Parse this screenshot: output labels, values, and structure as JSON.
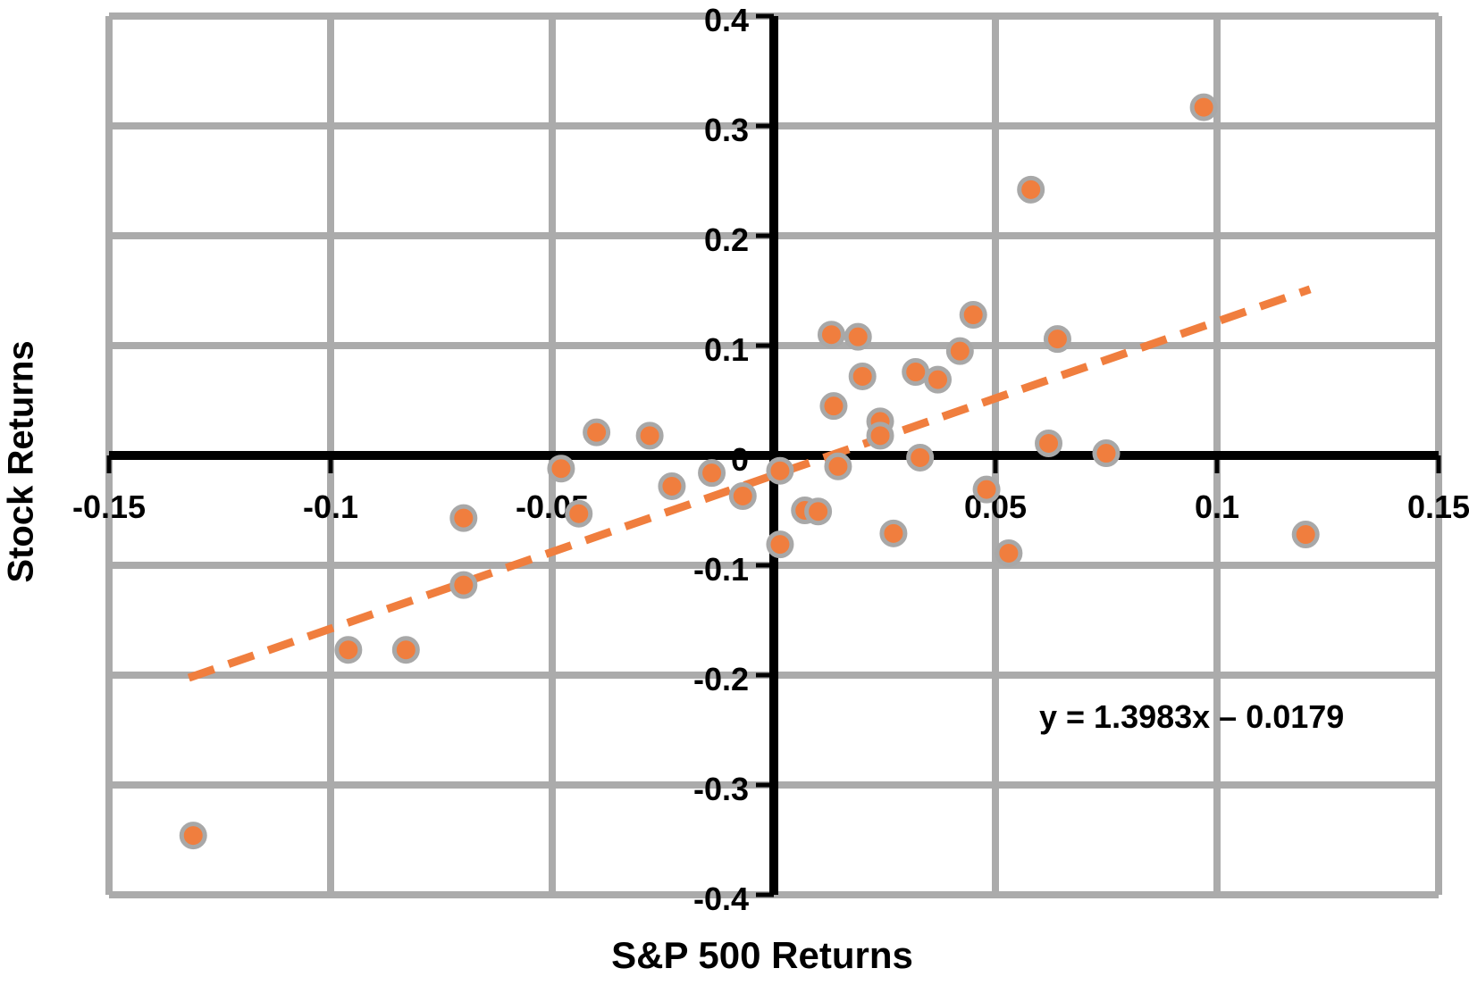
{
  "chart_data": {
    "type": "scatter",
    "title": "",
    "xlabel": "S&P 500 Returns",
    "ylabel": "Stock Returns",
    "xlim": [
      -0.15,
      0.15
    ],
    "ylim": [
      -0.4,
      0.4
    ],
    "grid": "on",
    "x_ticks": [
      {
        "v": -0.15,
        "label": "-0.15"
      },
      {
        "v": -0.1,
        "label": "-0.1"
      },
      {
        "v": -0.05,
        "label": "-0.05"
      },
      {
        "v": 0.05,
        "label": "0.05"
      },
      {
        "v": 0.1,
        "label": "0.1"
      },
      {
        "v": 0.15,
        "label": "0.15"
      }
    ],
    "y_ticks": [
      {
        "v": 0.4,
        "label": "0.4"
      },
      {
        "v": 0.3,
        "label": "0.3"
      },
      {
        "v": 0.2,
        "label": "0.2"
      },
      {
        "v": 0.1,
        "label": "0.1"
      },
      {
        "v": 0.0,
        "label": "0"
      },
      {
        "v": -0.1,
        "label": "-0.1"
      },
      {
        "v": -0.2,
        "label": "-0.2"
      },
      {
        "v": -0.3,
        "label": "-0.3"
      },
      {
        "v": -0.4,
        "label": "-0.4"
      }
    ],
    "points": [
      [
        0.097,
        0.317
      ],
      [
        0.058,
        0.242
      ],
      [
        0.013,
        0.11
      ],
      [
        0.019,
        0.108
      ],
      [
        0.045,
        0.128
      ],
      [
        0.042,
        0.095
      ],
      [
        0.064,
        0.106
      ],
      [
        0.02,
        0.072
      ],
      [
        0.032,
        0.076
      ],
      [
        0.037,
        0.069
      ],
      [
        0.0135,
        0.045
      ],
      [
        0.024,
        0.031
      ],
      [
        0.024,
        0.018
      ],
      [
        0.062,
        0.011
      ],
      [
        -0.04,
        0.021
      ],
      [
        -0.048,
        -0.012
      ],
      [
        -0.028,
        0.018
      ],
      [
        0.033,
        -0.002
      ],
      [
        0.0014,
        -0.014
      ],
      [
        -0.007,
        -0.037
      ],
      [
        0.0145,
        -0.01
      ],
      [
        0.007,
        -0.05
      ],
      [
        0.01,
        -0.051
      ],
      [
        0.048,
        -0.031
      ],
      [
        0.027,
        -0.071
      ],
      [
        0.0014,
        -0.081
      ],
      [
        -0.014,
        -0.016
      ],
      [
        -0.023,
        -0.028
      ],
      [
        -0.044,
        -0.053
      ],
      [
        -0.07,
        -0.057
      ],
      [
        -0.07,
        -0.118
      ],
      [
        0.053,
        -0.089
      ],
      [
        0.12,
        -0.072
      ],
      [
        0.075,
        0.002
      ],
      [
        -0.096,
        -0.177
      ],
      [
        -0.083,
        -0.177
      ],
      [
        -0.131,
        -0.346
      ]
    ],
    "trendline": {
      "equation": "y = 1.3983x – 0.0179",
      "slope": 1.3983,
      "intercept": -0.0179,
      "x_start": -0.132,
      "x_end": 0.121,
      "style": "dashed"
    },
    "colors": {
      "point_fill": "#F07E3E",
      "point_stroke": "#A8A8A8",
      "trend": "#F07E3E",
      "gridline": "#ABABAB",
      "axis": "#000000",
      "text": "#000000",
      "background": "#FFFFFF"
    },
    "legend": "none"
  }
}
